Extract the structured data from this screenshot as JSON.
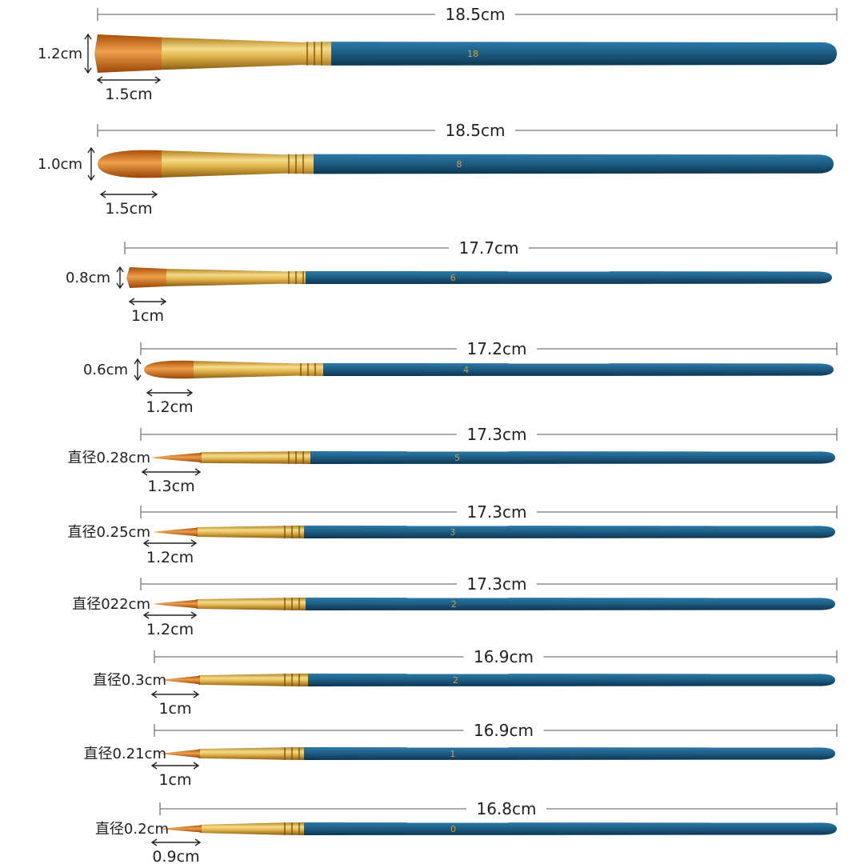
{
  "colors": {
    "handle": "#1f5f86",
    "handle_dark": "#0f3550",
    "ferrule": "#d9a63a",
    "ferrule_light": "#f5dc8a",
    "bristle": "#c5640f",
    "bristle_light": "#eea04a",
    "tick_color": "#777777",
    "arrow_color": "#222222"
  },
  "brushes": [
    {
      "length": "18.5cm",
      "width": "1.2cm",
      "tip": "1.5cm",
      "shape": "flat",
      "size_mark": "18"
    },
    {
      "length": "18.5cm",
      "width": "1.0cm",
      "tip": "1.5cm",
      "shape": "filbert",
      "size_mark": "8"
    },
    {
      "length": "17.7cm",
      "width": "0.8cm",
      "tip": "1cm",
      "shape": "flat",
      "size_mark": "6"
    },
    {
      "length": "17.2cm",
      "width": "0.6cm",
      "tip": "1.2cm",
      "shape": "filbert",
      "size_mark": "4"
    },
    {
      "length": "17.3cm",
      "width": "直径0.28cm",
      "tip": "1.3cm",
      "shape": "round",
      "size_mark": "5"
    },
    {
      "length": "17.3cm",
      "width": "直径0.25cm",
      "tip": "1.2cm",
      "shape": "round",
      "size_mark": "3"
    },
    {
      "length": "17.3cm",
      "width": "直径022cm",
      "tip": "1.2cm",
      "shape": "round",
      "size_mark": "2"
    },
    {
      "length": "16.9cm",
      "width": "直径0.3cm",
      "tip": "1cm",
      "shape": "round",
      "size_mark": "2"
    },
    {
      "length": "16.9cm",
      "width": "直径0.21cm",
      "tip": "1cm",
      "shape": "round",
      "size_mark": "1"
    },
    {
      "length": "16.8cm",
      "width": "直径0.2cm",
      "tip": "0.9cm",
      "shape": "round",
      "size_mark": "0"
    }
  ]
}
